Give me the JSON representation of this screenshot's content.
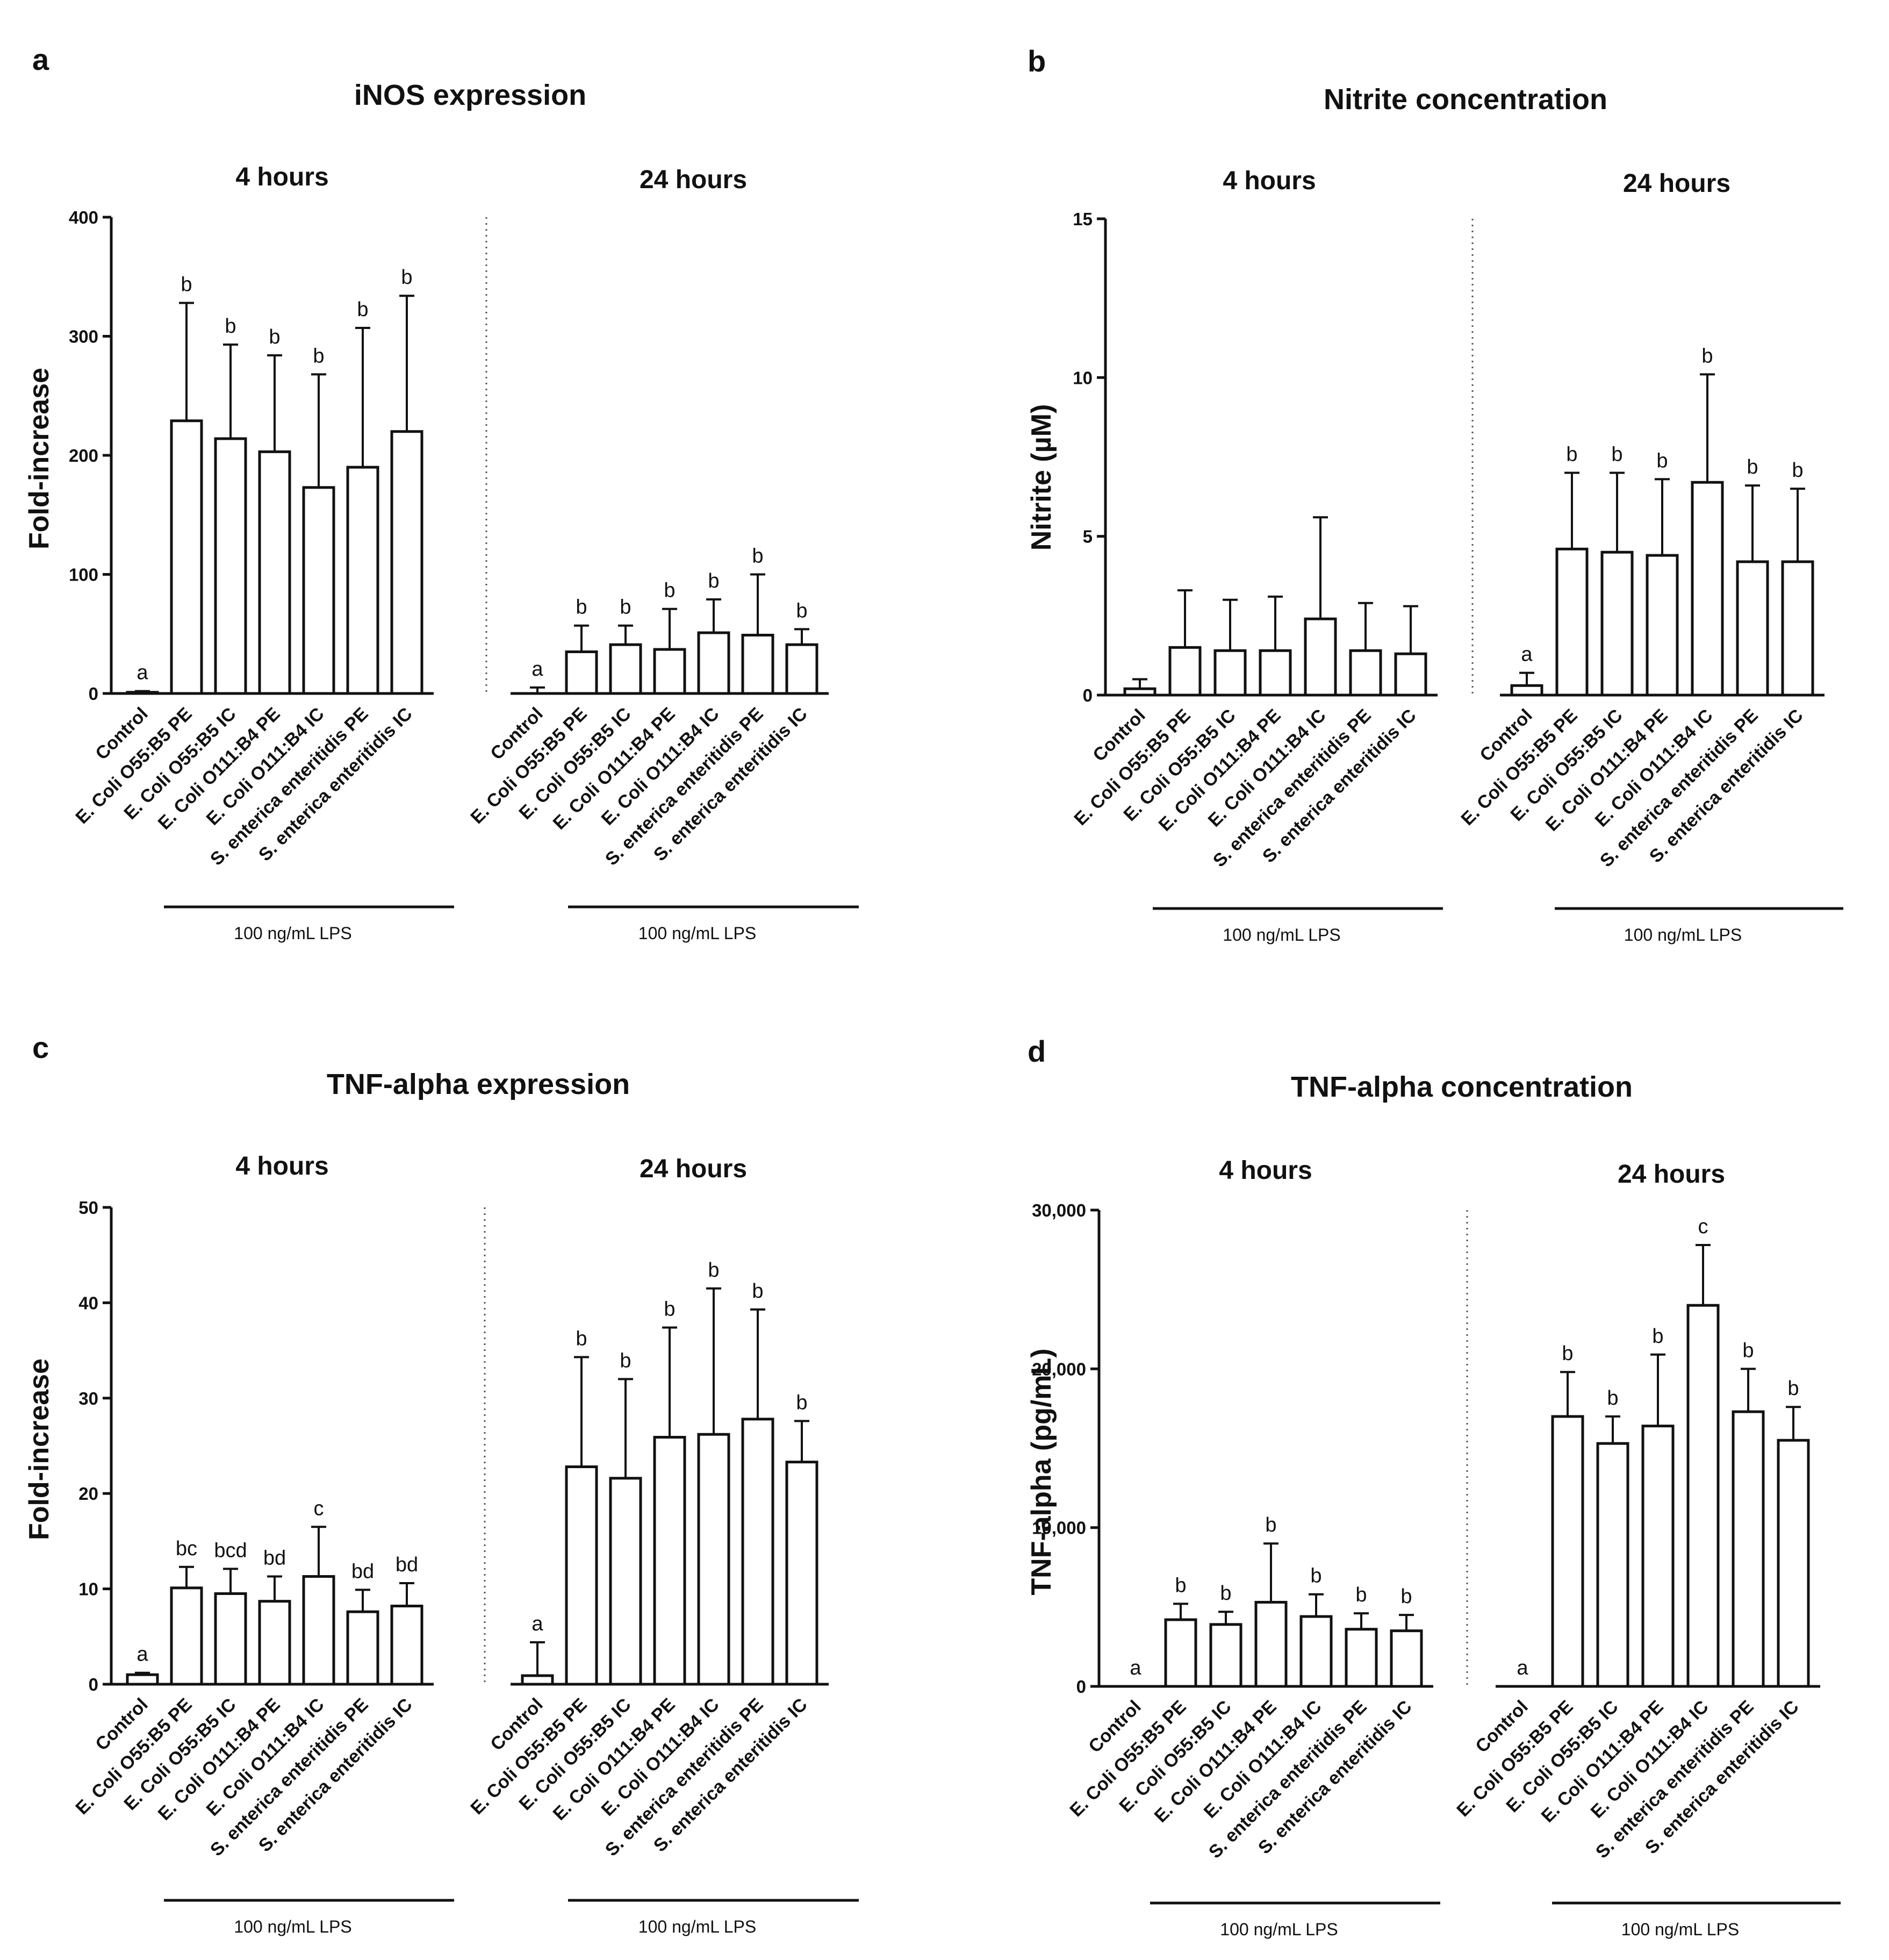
{
  "chart_data": [
    {
      "panel": "a",
      "type": "bar",
      "title": "iNOS expression",
      "ylabel": "Fold-increase",
      "xlabel": "",
      "ylim": [
        0,
        400
      ],
      "yticks": [
        0,
        100,
        200,
        300,
        400
      ],
      "ytick_labels": [
        "0",
        "100",
        "200",
        "300",
        "400"
      ],
      "groups": [
        {
          "title": "4 hours",
          "categories": [
            "Control",
            "E. Coli O55:B5 PE",
            "E. Coli O55:B5 IC",
            "E. Coli O111:B4 PE",
            "E. Coli O111:B4 IC",
            "S. enterica enteritidis PE",
            "S. enterica enteritidis IC"
          ],
          "values": [
            1,
            229,
            214,
            203,
            173,
            190,
            220
          ],
          "errors": [
            1,
            99,
            79,
            81,
            95,
            117,
            114
          ],
          "letters": [
            "a",
            "b",
            "b",
            "b",
            "b",
            "b",
            "b"
          ],
          "lps_label": "100 ng/mL LPS"
        },
        {
          "title": "24 hours",
          "categories": [
            "Control",
            "E. Coli O55:B5 PE",
            "E. Coli O55:B5 IC",
            "E. Coli O111:B4 PE",
            "E. Coli O111:B4 IC",
            "S. enterica enteritidis PE",
            "S. enterica enteritidis IC"
          ],
          "values": [
            0,
            35,
            41,
            37,
            51,
            49,
            41
          ],
          "errors": [
            5,
            22,
            16,
            34,
            28,
            51,
            13
          ],
          "letters": [
            "a",
            "b",
            "b",
            "b",
            "b",
            "b",
            "b"
          ],
          "lps_label": "100 ng/mL LPS"
        }
      ]
    },
    {
      "panel": "b",
      "type": "bar",
      "title": "Nitrite concentration",
      "ylabel": "Nitrite (µM)",
      "xlabel": "",
      "ylim": [
        0,
        15
      ],
      "yticks": [
        0,
        5,
        10,
        15
      ],
      "ytick_labels": [
        "0",
        "5",
        "10",
        "15"
      ],
      "groups": [
        {
          "title": "4 hours",
          "categories": [
            "Control",
            "E. Coli O55:B5 PE",
            "E. Coli O55:B5 IC",
            "E. Coli O111:B4 PE",
            "E. Coli O111:B4 IC",
            "S. enterica enteritidis PE",
            "S. enterica enteritidis IC"
          ],
          "values": [
            0.2,
            1.5,
            1.4,
            1.4,
            2.4,
            1.4,
            1.3
          ],
          "errors": [
            0.3,
            1.8,
            1.6,
            1.7,
            3.2,
            1.5,
            1.5
          ],
          "letters": [
            "",
            "",
            "",
            "",
            "",
            "",
            ""
          ],
          "lps_label": "100 ng/mL LPS"
        },
        {
          "title": "24 hours",
          "categories": [
            "Control",
            "E. Coli O55:B5 PE",
            "E. Coli O55:B5 IC",
            "E. Coli O111:B4 PE",
            "E. Coli O111:B4 IC",
            "S. enterica enteritidis PE",
            "S. enterica enteritidis IC"
          ],
          "values": [
            0.3,
            4.6,
            4.5,
            4.4,
            6.7,
            4.2,
            4.2
          ],
          "errors": [
            0.4,
            2.4,
            2.5,
            2.4,
            3.4,
            2.4,
            2.3
          ],
          "letters": [
            "a",
            "b",
            "b",
            "b",
            "b",
            "b",
            "b"
          ],
          "lps_label": "100 ng/mL LPS"
        }
      ]
    },
    {
      "panel": "c",
      "type": "bar",
      "title": "TNF-alpha expression",
      "ylabel": "Fold-increase",
      "xlabel": "",
      "ylim": [
        0,
        50
      ],
      "yticks": [
        0,
        10,
        20,
        30,
        40,
        50
      ],
      "ytick_labels": [
        "0",
        "10",
        "20",
        "30",
        "40",
        "50"
      ],
      "groups": [
        {
          "title": "4 hours",
          "categories": [
            "Control",
            "E. Coli O55:B5 PE",
            "E. Coli O55:B5 IC",
            "E. Coli O111:B4 PE",
            "E. Coli O111:B4 IC",
            "S. enterica enteritidis PE",
            "S. enterica enteritidis IC"
          ],
          "values": [
            1,
            10.1,
            9.5,
            8.7,
            11.3,
            7.6,
            8.2
          ],
          "errors": [
            0.2,
            2.2,
            2.6,
            2.6,
            5.2,
            2.3,
            2.4
          ],
          "letters": [
            "a",
            "bc",
            "bcd",
            "bd",
            "c",
            "bd",
            "bd"
          ],
          "lps_label": "100 ng/mL LPS"
        },
        {
          "title": "24 hours",
          "categories": [
            "Control",
            "E. Coli O55:B5 PE",
            "E. Coli O55:B5 IC",
            "E. Coli O111:B4 PE",
            "E. Coli O111:B4 IC",
            "S. enterica enteritidis PE",
            "S. enterica enteritidis IC"
          ],
          "values": [
            0.9,
            22.8,
            21.6,
            25.9,
            26.2,
            27.8,
            23.3
          ],
          "errors": [
            3.5,
            11.5,
            10.4,
            11.5,
            15.3,
            11.5,
            4.3
          ],
          "letters": [
            "a",
            "b",
            "b",
            "b",
            "b",
            "b",
            "b"
          ],
          "lps_label": "100 ng/mL LPS"
        }
      ]
    },
    {
      "panel": "d",
      "type": "bar",
      "title": "TNF-alpha concentration",
      "ylabel": "TNF-alpha (pg/mL)",
      "xlabel": "",
      "ylim": [
        0,
        30000
      ],
      "yticks": [
        0,
        10000,
        20000,
        30000
      ],
      "ytick_labels": [
        "0",
        "10,000",
        "20,000",
        "30,000"
      ],
      "groups": [
        {
          "title": "4 hours",
          "categories": [
            "Control",
            "E. Coli O55:B5 PE",
            "E. Coli O55:B5 IC",
            "E. Coli O111:B4 PE",
            "E. Coli O111:B4 IC",
            "S. enterica enteritidis PE",
            "S. enterica enteritidis IC"
          ],
          "values": [
            0,
            4200,
            3900,
            5300,
            4400,
            3600,
            3500
          ],
          "errors": [
            0,
            1000,
            800,
            3700,
            1400,
            1000,
            1000
          ],
          "letters": [
            "a",
            "b",
            "b",
            "b",
            "b",
            "b",
            "b"
          ],
          "lps_label": "100 ng/mL LPS"
        },
        {
          "title": "24 hours",
          "categories": [
            "Control",
            "E. Coli O55:B5 PE",
            "E. Coli O55:B5 IC",
            "E. Coli O111:B4 PE",
            "E. Coli O111:B4 IC",
            "S. enterica enteritidis PE",
            "S. enterica enteritidis IC"
          ],
          "values": [
            0,
            17000,
            15300,
            16400,
            24000,
            17300,
            15500
          ],
          "errors": [
            0,
            2800,
            1700,
            4500,
            3800,
            2700,
            2100
          ],
          "letters": [
            "a",
            "b",
            "b",
            "b",
            "c",
            "b",
            "b"
          ],
          "lps_label": "100 ng/mL LPS"
        }
      ]
    }
  ]
}
